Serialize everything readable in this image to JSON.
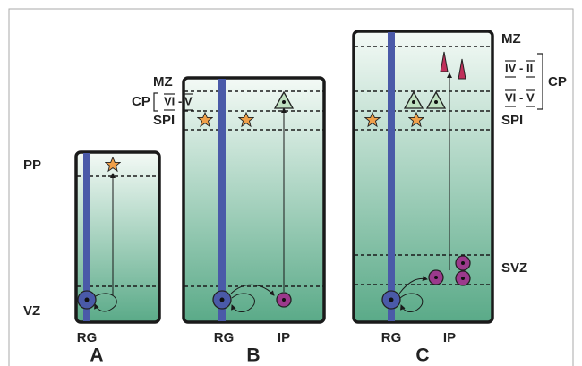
{
  "panels": [
    {
      "letter": "A",
      "cell_labels": [
        "RG"
      ],
      "zones": {
        "top": "PP",
        "bottom": "VZ"
      }
    },
    {
      "letter": "B",
      "cell_labels": [
        "RG",
        "IP"
      ],
      "zones": {
        "mz": "MZ",
        "cp": "CP",
        "spi": "SPI"
      },
      "cp_layers": [
        {
          "from": "VI",
          "sep": "-",
          "to": "V"
        }
      ]
    },
    {
      "letter": "C",
      "cell_labels": [
        "RG",
        "IP"
      ],
      "zones": {
        "mz": "MZ",
        "cp": "CP",
        "spi": "SPI",
        "svz": "SVZ"
      },
      "cp_layers": [
        {
          "from": "IV",
          "sep": "-",
          "to": "II"
        },
        {
          "from": "VI",
          "sep": "-",
          "to": "V"
        }
      ]
    }
  ]
}
